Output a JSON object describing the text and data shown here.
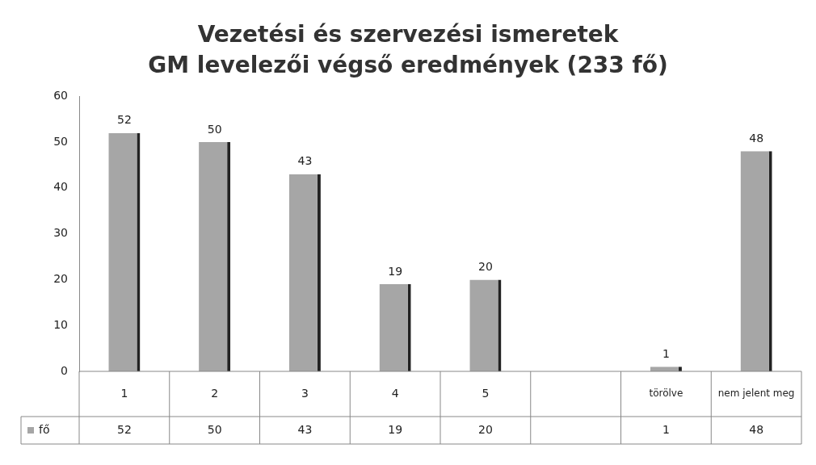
{
  "chart_data": {
    "type": "bar",
    "title": "Vezetési és szervezési ismeretek",
    "subtitle": "GM levelezői végső eredmények (233 fő)",
    "categories": [
      "1",
      "2",
      "3",
      "4",
      "5",
      null,
      "törölve",
      "nem jelent meg"
    ],
    "series": [
      {
        "name": "fő",
        "color": "#a6a6a6",
        "values": [
          52,
          50,
          43,
          19,
          20,
          null,
          1,
          48
        ]
      }
    ],
    "annotations": [
      {
        "text": "52",
        "x": "1",
        "y": 52
      },
      {
        "text": "50",
        "x": "2",
        "y": 50
      },
      {
        "text": "43",
        "x": "3",
        "y": 43
      },
      {
        "text": "19",
        "x": "4",
        "y": 19
      },
      {
        "text": "20",
        "x": "5",
        "y": 20
      },
      {
        "text": "1",
        "x": "törölve",
        "y": 1
      },
      {
        "text": "48",
        "x": "nem jelent meg",
        "y": 48
      }
    ],
    "ylim": [
      0,
      60
    ],
    "yticks": [
      0,
      10,
      20,
      30,
      40,
      50,
      60
    ],
    "grid": false,
    "legend": "bottom left",
    "data_labels": true
  }
}
